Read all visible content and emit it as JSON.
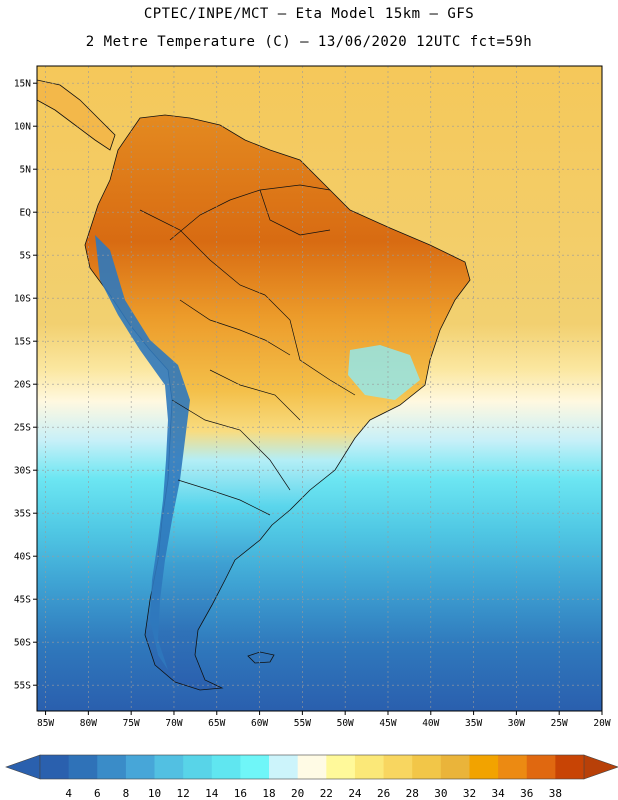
{
  "header": {
    "line1": "CPTEC/INPE/MCT –  Eta Model 15km – GFS",
    "line2": "2 Metre Temperature (C) – 13/06/2020 12UTC fct=59h"
  },
  "axes": {
    "lat_labels": [
      "15N",
      "10N",
      "5N",
      "EQ",
      "5S",
      "10S",
      "15S",
      "20S",
      "25S",
      "30S",
      "35S",
      "40S",
      "45S",
      "50S",
      "55S"
    ],
    "lat_values": [
      15,
      10,
      5,
      0,
      -5,
      -10,
      -15,
      -20,
      -25,
      -30,
      -35,
      -40,
      -45,
      -50,
      -55
    ],
    "lon_labels": [
      "85W",
      "80W",
      "75W",
      "70W",
      "65W",
      "60W",
      "55W",
      "50W",
      "45W",
      "40W",
      "35W",
      "30W",
      "25W",
      "20W"
    ],
    "lon_values": [
      -85,
      -80,
      -75,
      -70,
      -65,
      -60,
      -55,
      -50,
      -45,
      -40,
      -35,
      -30,
      -25,
      -20
    ],
    "lat_range": [
      -58,
      17
    ],
    "lon_range": [
      -86,
      -20
    ]
  },
  "colorbar": {
    "labels": [
      "4",
      "6",
      "8",
      "10",
      "12",
      "14",
      "16",
      "18",
      "20",
      "22",
      "24",
      "26",
      "28",
      "30",
      "32",
      "34",
      "36",
      "38"
    ],
    "colors": [
      "#2a60ae",
      "#2f72b8",
      "#3a8cc8",
      "#47a6d8",
      "#52c0e2",
      "#58d4e8",
      "#60e6f0",
      "#6ff6f8",
      "#ccf4fb",
      "#fffbe5",
      "#fff99a",
      "#fbe878",
      "#f8d660",
      "#f2c648",
      "#eab43a",
      "#f2a300",
      "#ec8a12",
      "#e06810",
      "#c84405"
    ],
    "left_color": "#2a60ae",
    "right_color": "#b84008"
  },
  "legend": {
    "lowest_color": "#2a60ae",
    "highest_color": "#b84008"
  }
}
